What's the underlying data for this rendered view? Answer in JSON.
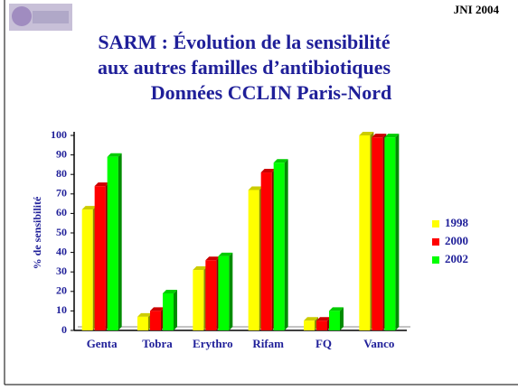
{
  "header": {
    "event": "JNI 2004"
  },
  "chart_data": {
    "type": "bar3d",
    "title": [
      "SARM : Évolution de la sensibilité",
      "aux autres familles d’antibiotiques",
      "Données CCLIN Paris-Nord"
    ],
    "y_label": "% de sensibilité",
    "categories": [
      "Genta",
      "Tobra",
      "Erythro",
      "Rifam",
      "FQ",
      "Vanco"
    ],
    "series": [
      {
        "name": "1998",
        "color": "#ffff00",
        "values": [
          62,
          7,
          31,
          72,
          5,
          100
        ]
      },
      {
        "name": "2000",
        "color": "#ff0000",
        "values": [
          74,
          10,
          36,
          81,
          5,
          99
        ]
      },
      {
        "name": "2002",
        "color": "#00ff00",
        "values": [
          89,
          19,
          38,
          86,
          10,
          99
        ]
      }
    ],
    "ylim": [
      0,
      100
    ],
    "yticks": [
      0,
      10,
      20,
      30,
      40,
      50,
      60,
      70,
      80,
      90,
      100
    ],
    "legend": "right"
  }
}
